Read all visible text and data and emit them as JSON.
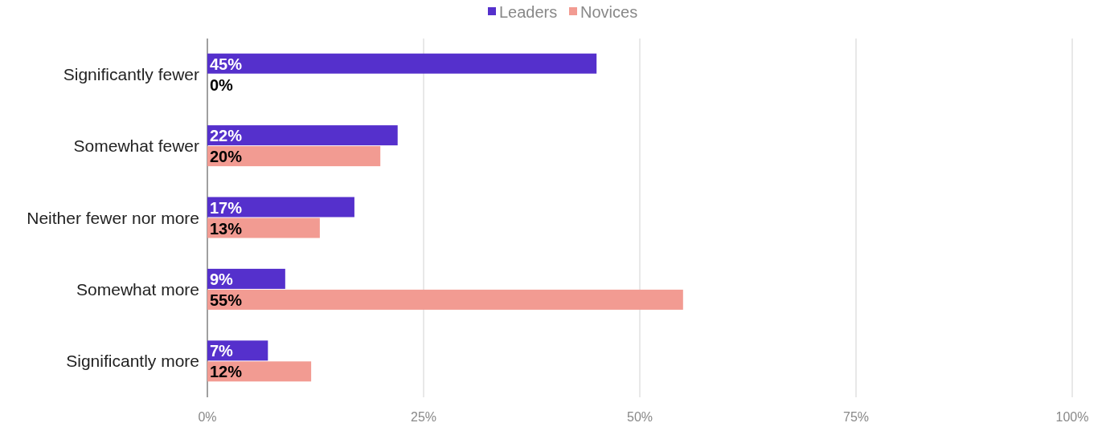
{
  "chart_data": {
    "type": "bar",
    "orientation": "horizontal",
    "categories": [
      "Significantly fewer",
      "Somewhat fewer",
      "Neither fewer nor more",
      "Somewhat more",
      "Significantly more"
    ],
    "series": [
      {
        "name": "Leaders",
        "color": "#5530cc",
        "values": [
          45,
          22,
          17,
          9,
          7
        ],
        "value_labels": [
          "45%",
          "22%",
          "17%",
          "9%",
          "7%"
        ]
      },
      {
        "name": "Novices",
        "color": "#f29b92",
        "values": [
          0,
          20,
          13,
          55,
          12
        ],
        "value_labels": [
          "0%",
          "20%",
          "13%",
          "55%",
          "12%"
        ]
      }
    ],
    "xlim": [
      0,
      100
    ],
    "xticks": [
      {
        "value": 0,
        "label": "0%"
      },
      {
        "value": 25,
        "label": "25%"
      },
      {
        "value": 50,
        "label": "50%"
      },
      {
        "value": 75,
        "label": "75%"
      },
      {
        "value": 100,
        "label": "100%"
      }
    ],
    "grid": "x",
    "legend": "top"
  }
}
